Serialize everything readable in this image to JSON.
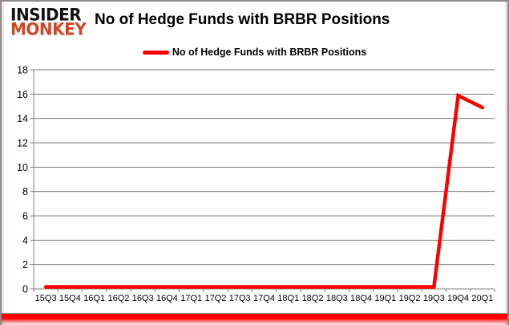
{
  "logo": {
    "line1": "INSIDER",
    "line2": "MONKEY"
  },
  "header": {
    "title": "No of Hedge Funds with BRBR Positions"
  },
  "legend": {
    "label": "No of Hedge Funds with BRBR Positions",
    "swatch_color": "#ff0000"
  },
  "chart_data": {
    "type": "line",
    "title": "No of Hedge Funds with BRBR Positions",
    "categories": [
      "15Q3",
      "15Q4",
      "16Q1",
      "16Q2",
      "16Q3",
      "16Q4",
      "17Q1",
      "17Q2",
      "17Q3",
      "17Q4",
      "18Q1",
      "18Q2",
      "18Q3",
      "18Q4",
      "19Q1",
      "19Q2",
      "19Q3",
      "19Q4",
      "20Q1"
    ],
    "series": [
      {
        "name": "No of Hedge Funds with BRBR Positions",
        "color": "#ff0000",
        "values": [
          0,
          0,
          0,
          0,
          0,
          0,
          0,
          0,
          0,
          0,
          0,
          0,
          0,
          0,
          0,
          0,
          0,
          16,
          15
        ]
      }
    ],
    "xlabel": "",
    "ylabel": "",
    "ylim": [
      0,
      18
    ],
    "ytick_step": 2,
    "grid": true,
    "gridline_color": "#808080",
    "axis_color": "#808080",
    "tick_label_color": "#000000",
    "legend_position": "top-center"
  },
  "colors": {
    "frame_border": "#8a8a8a",
    "bottom_bar": "#ff0000",
    "logo_line1": "#111111",
    "logo_line2": "#cd4727"
  }
}
